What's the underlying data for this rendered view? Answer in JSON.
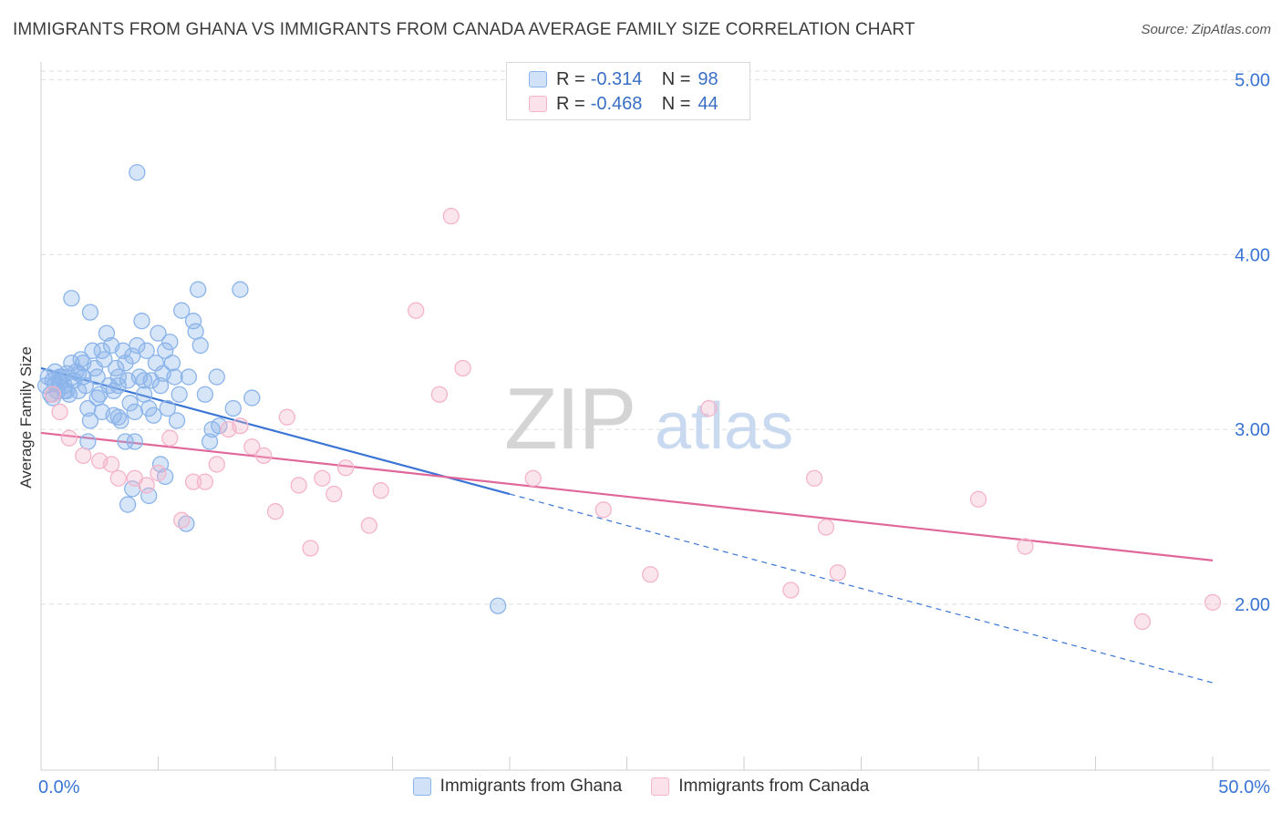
{
  "chart_data": {
    "type": "scatter",
    "title": "IMMIGRANTS FROM GHANA VS IMMIGRANTS FROM CANADA AVERAGE FAMILY SIZE CORRELATION CHART",
    "source": "Source: ZipAtlas.com",
    "xlabel": "",
    "ylabel": "Average Family Size",
    "x_tick_labels": [
      "0.0%",
      "50.0%"
    ],
    "y_tick_labels": [
      "2.00",
      "3.00",
      "4.00",
      "5.00"
    ],
    "xlim": [
      0,
      50
    ],
    "ylim": [
      1.05,
      5.1
    ],
    "watermark_zip": "ZIP",
    "watermark_atlas": "atlas",
    "series": [
      {
        "name": "Immigrants from Ghana",
        "color": "#8bb4ea",
        "line_color": "#3a74d4",
        "r_label": "R =",
        "r_value": "-0.314",
        "n_label": "N =",
        "n_value": "98",
        "trend": {
          "x0": 0,
          "y0": 3.35,
          "x1": 20,
          "y1": 2.63,
          "x_dash_end": 50,
          "y_dash_end": 1.55
        },
        "points": [
          [
            0.2,
            3.25
          ],
          [
            0.3,
            3.3
          ],
          [
            0.4,
            3.2
          ],
          [
            0.5,
            3.28
          ],
          [
            0.6,
            3.33
          ],
          [
            0.7,
            3.22
          ],
          [
            0.8,
            3.27
          ],
          [
            0.9,
            3.3
          ],
          [
            1.0,
            3.25
          ],
          [
            1.1,
            3.32
          ],
          [
            1.2,
            3.2
          ],
          [
            1.3,
            3.38
          ],
          [
            1.4,
            3.28
          ],
          [
            1.5,
            3.33
          ],
          [
            1.6,
            3.22
          ],
          [
            1.7,
            3.4
          ],
          [
            1.8,
            3.3
          ],
          [
            1.9,
            3.25
          ],
          [
            2.0,
            3.12
          ],
          [
            2.1,
            3.05
          ],
          [
            2.2,
            3.45
          ],
          [
            2.3,
            3.35
          ],
          [
            2.4,
            3.3
          ],
          [
            2.5,
            3.2
          ],
          [
            2.6,
            3.1
          ],
          [
            2.7,
            3.4
          ],
          [
            2.8,
            3.55
          ],
          [
            2.9,
            3.25
          ],
          [
            3.0,
            3.48
          ],
          [
            3.1,
            3.22
          ],
          [
            3.2,
            3.35
          ],
          [
            3.3,
            3.3
          ],
          [
            3.4,
            3.05
          ],
          [
            3.5,
            3.45
          ],
          [
            3.6,
            3.38
          ],
          [
            3.7,
            3.28
          ],
          [
            3.8,
            3.15
          ],
          [
            3.9,
            3.42
          ],
          [
            4.0,
            3.1
          ],
          [
            4.1,
            3.48
          ],
          [
            4.2,
            3.3
          ],
          [
            4.3,
            3.62
          ],
          [
            4.4,
            3.2
          ],
          [
            4.5,
            3.45
          ],
          [
            4.6,
            3.12
          ],
          [
            4.7,
            3.28
          ],
          [
            4.8,
            3.08
          ],
          [
            4.9,
            3.38
          ],
          [
            5.0,
            3.55
          ],
          [
            5.1,
            3.25
          ],
          [
            5.2,
            3.32
          ],
          [
            5.3,
            3.45
          ],
          [
            5.4,
            3.12
          ],
          [
            5.5,
            3.5
          ],
          [
            5.6,
            3.38
          ],
          [
            5.7,
            3.3
          ],
          [
            5.8,
            3.05
          ],
          [
            5.9,
            3.2
          ],
          [
            6.0,
            3.68
          ],
          [
            6.3,
            3.3
          ],
          [
            6.5,
            3.62
          ],
          [
            6.8,
            3.48
          ],
          [
            6.6,
            3.56
          ],
          [
            7.0,
            3.2
          ],
          [
            7.2,
            2.93
          ],
          [
            7.3,
            3.0
          ],
          [
            7.6,
            3.02
          ],
          [
            8.2,
            3.12
          ],
          [
            8.5,
            3.8
          ],
          [
            9.0,
            3.18
          ],
          [
            4.1,
            4.47
          ],
          [
            1.3,
            3.75
          ],
          [
            2.1,
            3.67
          ],
          [
            6.7,
            3.8
          ],
          [
            7.5,
            3.3
          ],
          [
            3.7,
            2.57
          ],
          [
            4.6,
            2.62
          ],
          [
            6.2,
            2.46
          ],
          [
            3.9,
            2.66
          ],
          [
            3.6,
            2.93
          ],
          [
            3.1,
            3.08
          ],
          [
            1.8,
            3.38
          ],
          [
            2.6,
            3.45
          ],
          [
            0.5,
            3.18
          ],
          [
            1.1,
            3.22
          ],
          [
            1.6,
            3.32
          ],
          [
            2.4,
            3.18
          ],
          [
            3.3,
            3.25
          ],
          [
            4.4,
            3.28
          ],
          [
            5.1,
            2.8
          ],
          [
            4.0,
            2.93
          ],
          [
            2.0,
            2.93
          ],
          [
            5.3,
            2.73
          ],
          [
            3.3,
            3.07
          ],
          [
            1.0,
            3.22
          ],
          [
            0.8,
            3.3
          ],
          [
            0.6,
            3.26
          ],
          [
            19.5,
            1.99
          ]
        ]
      },
      {
        "name": "Immigrants from Canada",
        "color": "#f4b4c9",
        "line_color": "#e0679a",
        "r_label": "R =",
        "r_value": "-0.468",
        "n_label": "N =",
        "n_value": "44",
        "trend": {
          "x0": 0,
          "y0": 2.98,
          "x1": 50,
          "y1": 2.25
        },
        "points": [
          [
            0.5,
            3.2
          ],
          [
            0.8,
            3.1
          ],
          [
            1.2,
            2.95
          ],
          [
            1.8,
            2.85
          ],
          [
            2.5,
            2.82
          ],
          [
            3.0,
            2.8
          ],
          [
            3.3,
            2.72
          ],
          [
            4.0,
            2.72
          ],
          [
            4.5,
            2.68
          ],
          [
            5.0,
            2.75
          ],
          [
            5.5,
            2.95
          ],
          [
            6.0,
            2.48
          ],
          [
            6.5,
            2.7
          ],
          [
            7.0,
            2.7
          ],
          [
            7.5,
            2.8
          ],
          [
            8.0,
            3.0
          ],
          [
            8.5,
            3.02
          ],
          [
            9.0,
            2.9
          ],
          [
            9.5,
            2.85
          ],
          [
            10.0,
            2.53
          ],
          [
            10.5,
            3.07
          ],
          [
            11.0,
            2.68
          ],
          [
            11.5,
            2.32
          ],
          [
            12.0,
            2.72
          ],
          [
            12.5,
            2.63
          ],
          [
            13.0,
            2.78
          ],
          [
            14.0,
            2.45
          ],
          [
            14.5,
            2.65
          ],
          [
            16.0,
            3.68
          ],
          [
            17.0,
            3.2
          ],
          [
            17.5,
            4.22
          ],
          [
            18.0,
            3.35
          ],
          [
            21.0,
            2.72
          ],
          [
            24.0,
            2.54
          ],
          [
            26.0,
            2.17
          ],
          [
            28.5,
            3.12
          ],
          [
            32.0,
            2.08
          ],
          [
            33.0,
            2.72
          ],
          [
            33.5,
            2.44
          ],
          [
            34.0,
            2.18
          ],
          [
            40.0,
            2.6
          ],
          [
            42.0,
            2.33
          ],
          [
            47.0,
            1.9
          ],
          [
            50.0,
            2.01
          ]
        ]
      }
    ]
  }
}
